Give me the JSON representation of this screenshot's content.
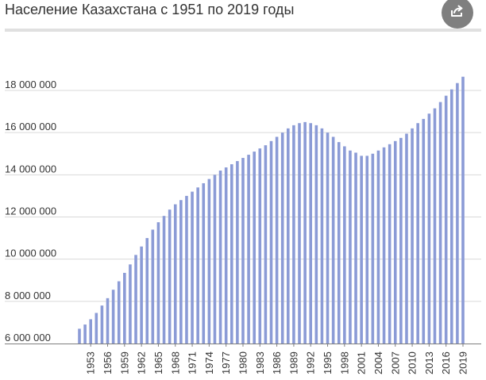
{
  "title": "Население Казахстана с 1951 по 2019 годы",
  "share_icon": "share-icon",
  "colors": {
    "bar": "#8b9bd6",
    "grid": "#d9d9d9",
    "axis": "#7f7f7f"
  },
  "chart_data": {
    "type": "bar",
    "title": "Население Казахстана с 1951 по 2019 годы",
    "xlabel": "",
    "ylabel": "",
    "ylim": [
      6000000,
      19000000
    ],
    "grid": true,
    "legend": "none",
    "y_ticks": [
      6000000,
      8000000,
      10000000,
      12000000,
      14000000,
      16000000,
      18000000
    ],
    "y_tick_labels": [
      "6 000 000",
      "8 000 000",
      "10 000 000",
      "12 000 000",
      "14 000 000",
      "16 000 000",
      "18 000 000"
    ],
    "x_tick_labels": [
      "1953",
      "1956",
      "1959",
      "1962",
      "1965",
      "1968",
      "1971",
      "1974",
      "1977",
      "1980",
      "1983",
      "1986",
      "1989",
      "1992",
      "1995",
      "1998",
      "2001",
      "2004",
      "2007",
      "2010",
      "2013",
      "2016",
      "2019"
    ],
    "categories": [
      "1951",
      "1952",
      "1953",
      "1954",
      "1955",
      "1956",
      "1957",
      "1958",
      "1959",
      "1960",
      "1961",
      "1962",
      "1963",
      "1964",
      "1965",
      "1966",
      "1967",
      "1968",
      "1969",
      "1970",
      "1971",
      "1972",
      "1973",
      "1974",
      "1975",
      "1976",
      "1977",
      "1978",
      "1979",
      "1980",
      "1981",
      "1982",
      "1983",
      "1984",
      "1985",
      "1986",
      "1987",
      "1988",
      "1989",
      "1990",
      "1991",
      "1992",
      "1993",
      "1994",
      "1995",
      "1996",
      "1997",
      "1998",
      "1999",
      "2000",
      "2001",
      "2002",
      "2003",
      "2004",
      "2005",
      "2006",
      "2007",
      "2008",
      "2009",
      "2010",
      "2011",
      "2012",
      "2013",
      "2014",
      "2015",
      "2016",
      "2017",
      "2018",
      "2019"
    ],
    "values": [
      6700000,
      6900000,
      7150000,
      7450000,
      7800000,
      8150000,
      8550000,
      8950000,
      9350000,
      9750000,
      10200000,
      10600000,
      11000000,
      11400000,
      11750000,
      12050000,
      12350000,
      12600000,
      12800000,
      13000000,
      13200000,
      13400000,
      13600000,
      13800000,
      14000000,
      14200000,
      14350000,
      14500000,
      14650000,
      14800000,
      14950000,
      15100000,
      15250000,
      15400000,
      15600000,
      15800000,
      16000000,
      16200000,
      16350000,
      16450000,
      16500000,
      16450000,
      16350000,
      16200000,
      16000000,
      15800000,
      15550000,
      15350000,
      15150000,
      15050000,
      14900000,
      14900000,
      15000000,
      15150000,
      15300000,
      15450000,
      15600000,
      15750000,
      15950000,
      16200000,
      16450000,
      16650000,
      16900000,
      17150000,
      17450000,
      17750000,
      18050000,
      18350000,
      18650000
    ]
  }
}
